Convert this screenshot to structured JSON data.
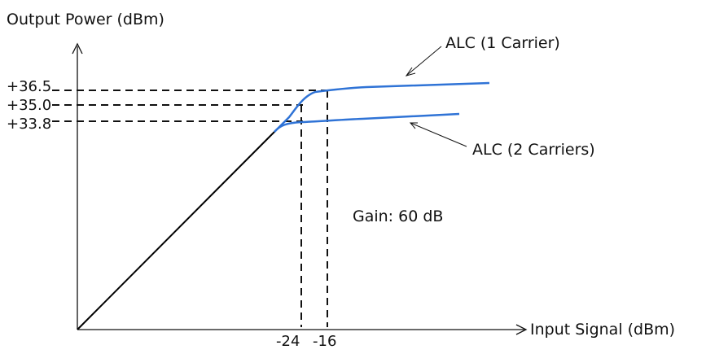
{
  "title_y": "Output Power (dBm)",
  "title_x": "Input Signal (dBm)",
  "gain_label": "Gain: 60 dB",
  "y_ticks": [
    "+36.5",
    "+35.0",
    "+33.8"
  ],
  "x_ticks": [
    "-24",
    "-16"
  ],
  "curves": {
    "alc1": "ALC (1 Carrier)",
    "alc2": "ALC (2 Carriers)"
  },
  "colors": {
    "axis": "#111111",
    "linear": "#000000",
    "alc": "#2f73d6",
    "guide": "#111111"
  }
}
